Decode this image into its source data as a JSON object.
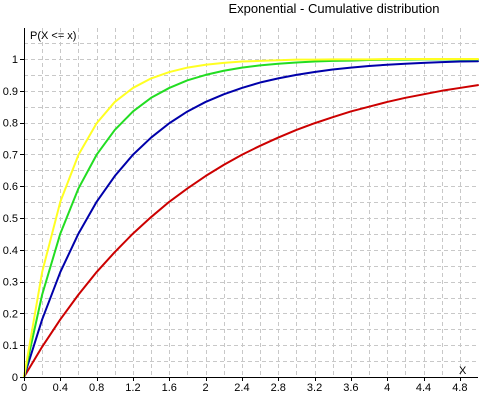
{
  "chart_data": {
    "type": "line",
    "title": "Exponential - Cumulative distribution",
    "xlabel": "X",
    "ylabel": "P(X <= x)",
    "xlim": [
      0,
      5.0
    ],
    "ylim": [
      0,
      1.1
    ],
    "grid": true,
    "x_ticks": [
      {
        "value": 0,
        "label": "0"
      },
      {
        "value": 0.4,
        "label": "0.4"
      },
      {
        "value": 0.8,
        "label": "0.8"
      },
      {
        "value": 1.2,
        "label": "1.2"
      },
      {
        "value": 1.6,
        "label": "1.6"
      },
      {
        "value": 2.0,
        "label": "2"
      },
      {
        "value": 2.4,
        "label": "2.4"
      },
      {
        "value": 2.8,
        "label": "2.8"
      },
      {
        "value": 3.2,
        "label": "3.2"
      },
      {
        "value": 3.6,
        "label": "3.6"
      },
      {
        "value": 4.0,
        "label": "4"
      },
      {
        "value": 4.4,
        "label": "4.4"
      },
      {
        "value": 4.8,
        "label": "4.8"
      }
    ],
    "y_ticks": [
      {
        "value": 0,
        "label": "0"
      },
      {
        "value": 0.1,
        "label": "0.1"
      },
      {
        "value": 0.2,
        "label": "0.2"
      },
      {
        "value": 0.3,
        "label": "0.3"
      },
      {
        "value": 0.4,
        "label": "0.4"
      },
      {
        "value": 0.5,
        "label": "0.5"
      },
      {
        "value": 0.6,
        "label": "0.6"
      },
      {
        "value": 0.7,
        "label": "0.7"
      },
      {
        "value": 0.8,
        "label": "0.8"
      },
      {
        "value": 0.9,
        "label": "0.9"
      },
      {
        "value": 1.0,
        "label": "1"
      }
    ],
    "x": [
      0,
      0.2,
      0.4,
      0.6,
      0.8,
      1.0,
      1.2,
      1.4,
      1.6,
      1.8,
      2.0,
      2.2,
      2.4,
      2.6,
      2.8,
      3.0,
      3.2,
      3.4,
      3.6,
      3.8,
      4.0,
      4.2,
      4.4,
      4.6,
      4.8,
      5.0
    ],
    "series": [
      {
        "color": "#cc0000",
        "values": [
          0,
          0.095,
          0.181,
          0.259,
          0.33,
          0.393,
          0.451,
          0.503,
          0.551,
          0.593,
          0.632,
          0.667,
          0.699,
          0.727,
          0.753,
          0.777,
          0.798,
          0.817,
          0.835,
          0.85,
          0.865,
          0.878,
          0.889,
          0.9,
          0.909,
          0.918
        ]
      },
      {
        "color": "#0000aa",
        "values": [
          0,
          0.181,
          0.33,
          0.451,
          0.551,
          0.632,
          0.699,
          0.753,
          0.798,
          0.835,
          0.865,
          0.889,
          0.909,
          0.926,
          0.939,
          0.95,
          0.959,
          0.967,
          0.973,
          0.978,
          0.982,
          0.985,
          0.988,
          0.99,
          0.992,
          0.993
        ]
      },
      {
        "color": "#22dd22",
        "values": [
          0,
          0.259,
          0.451,
          0.593,
          0.699,
          0.777,
          0.835,
          0.878,
          0.909,
          0.933,
          0.95,
          0.963,
          0.973,
          0.98,
          0.985,
          0.989,
          0.992,
          0.994,
          0.995,
          0.997,
          0.998,
          0.998,
          0.999,
          0.999,
          0.999,
          0.999
        ]
      },
      {
        "color": "#ffff22",
        "values": [
          0,
          0.33,
          0.551,
          0.699,
          0.798,
          0.865,
          0.909,
          0.939,
          0.959,
          0.973,
          0.982,
          0.988,
          0.992,
          0.994,
          0.996,
          0.998,
          0.998,
          0.999,
          0.999,
          0.999,
          1.0,
          1.0,
          1.0,
          1.0,
          1.0,
          1.0
        ]
      }
    ]
  }
}
